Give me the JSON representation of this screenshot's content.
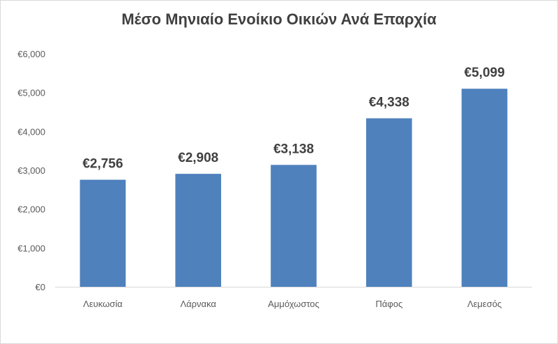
{
  "chart_data": {
    "type": "bar",
    "title": "Μέσο Μηνιαίο Ενοίκιο Οικιών Ανά Επαρχία",
    "categories": [
      "Λευκωσία",
      "Λάρνακα",
      "Αμμόχωστος",
      "Πάφος",
      "Λεμεσός"
    ],
    "values": [
      2756,
      2908,
      3138,
      4338,
      5099
    ],
    "data_labels": [
      "€2,756",
      "€2,908",
      "€3,138",
      "€4,338",
      "€5,099"
    ],
    "ylim": [
      0,
      6000
    ],
    "yticks": [
      0,
      1000,
      2000,
      3000,
      4000,
      5000,
      6000
    ],
    "ytick_labels": [
      "€0",
      "€1,000",
      "€2,000",
      "€3,000",
      "€4,000",
      "€5,000",
      "€6,000"
    ],
    "xlabel": "",
    "ylabel": "",
    "grid": false,
    "bar_color": "#4f81bd",
    "axis_color": "#d9d9d9"
  }
}
